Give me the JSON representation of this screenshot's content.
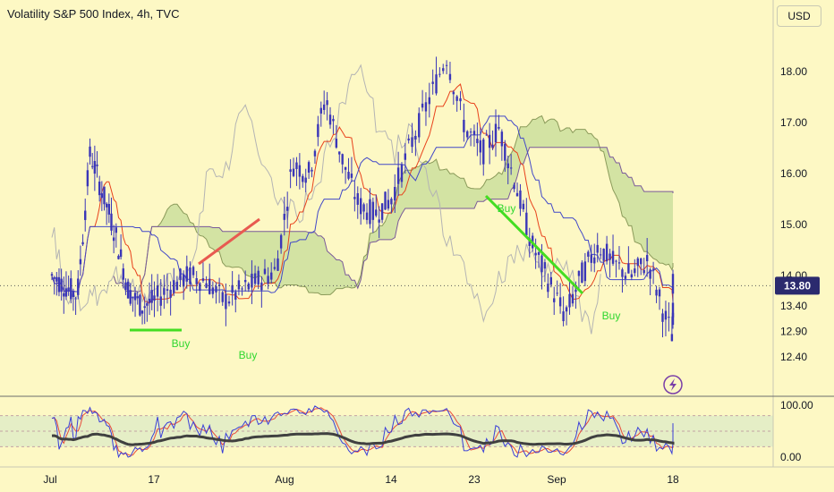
{
  "header": {
    "title": "Volatility S&P 500 Index, 4h, TVC",
    "currency": "USD"
  },
  "price_badge": "13.80",
  "colors": {
    "background": "#fdf8c4",
    "candle": "#3a36b8",
    "conversion_line": "#e8421c",
    "base_line": "#4248c8",
    "lagging_span": "#b4b4b4",
    "cloud": "#c4dc98",
    "buy_line": "#44dd22",
    "sell_line": "#e85a50",
    "stoch_k": "#3a3fd8",
    "stoch_d": "#e84a3a",
    "rsi": "#404040"
  },
  "chart_data": [
    {
      "type": "candlestick",
      "title": "Volatility S&P 500 Index, 4h, TVC",
      "ylim": [
        12.0,
        19.0
      ],
      "yticks": [
        "18.00",
        "17.00",
        "16.00",
        "15.00",
        "14.00",
        "13.40",
        "12.90",
        "12.40"
      ],
      "last_value": 13.8,
      "x_labels": [
        "Jul",
        "17",
        "Aug",
        "14",
        "23",
        "Sep",
        "18"
      ],
      "approx_path": [
        {
          "x": "Jul 1",
          "y": 14.0
        },
        {
          "x": "Jul 5",
          "y": 13.6
        },
        {
          "x": "Jul 7",
          "y": 16.4
        },
        {
          "x": "Jul 9",
          "y": 15.6
        },
        {
          "x": "Jul 11",
          "y": 14.8
        },
        {
          "x": "Jul 13",
          "y": 13.7
        },
        {
          "x": "Jul 15",
          "y": 13.4
        },
        {
          "x": "Jul 17",
          "y": 13.5
        },
        {
          "x": "Jul 19",
          "y": 13.8
        },
        {
          "x": "Jul 21",
          "y": 14.0
        },
        {
          "x": "Jul 23",
          "y": 13.9
        },
        {
          "x": "Jul 25",
          "y": 13.5
        },
        {
          "x": "Jul 27",
          "y": 13.7
        },
        {
          "x": "Jul 29",
          "y": 13.9
        },
        {
          "x": "Jul 31",
          "y": 14.1
        },
        {
          "x": "Aug 2",
          "y": 16.2
        },
        {
          "x": "Aug 4",
          "y": 16.0
        },
        {
          "x": "Aug 6",
          "y": 17.5
        },
        {
          "x": "Aug 8",
          "y": 16.3
        },
        {
          "x": "Aug 10",
          "y": 15.4
        },
        {
          "x": "Aug 12",
          "y": 15.2
        },
        {
          "x": "Aug 14",
          "y": 15.5
        },
        {
          "x": "Aug 16",
          "y": 16.5
        },
        {
          "x": "Aug 18",
          "y": 17.4
        },
        {
          "x": "Aug 20",
          "y": 18.3
        },
        {
          "x": "Aug 22",
          "y": 16.9
        },
        {
          "x": "Aug 24",
          "y": 16.4
        },
        {
          "x": "Aug 26",
          "y": 16.9
        },
        {
          "x": "Aug 28",
          "y": 15.8
        },
        {
          "x": "Aug 30",
          "y": 14.6
        },
        {
          "x": "Sep 1",
          "y": 13.9
        },
        {
          "x": "Sep 3",
          "y": 13.2
        },
        {
          "x": "Sep 5",
          "y": 14.0
        },
        {
          "x": "Sep 7",
          "y": 14.6
        },
        {
          "x": "Sep 9",
          "y": 14.2
        },
        {
          "x": "Sep 11",
          "y": 14.0
        },
        {
          "x": "Sep 13",
          "y": 14.3
        },
        {
          "x": "Sep 15",
          "y": 13.2
        },
        {
          "x": "Sep 16",
          "y": 12.8
        },
        {
          "x": "Sep 17",
          "y": 13.8
        }
      ],
      "annotations": [
        "Buy",
        "Buy",
        "Buy",
        "Buy"
      ]
    },
    {
      "type": "line",
      "ylim": [
        0,
        100
      ],
      "yticks": [
        "100.00",
        "0.00"
      ]
    }
  ]
}
